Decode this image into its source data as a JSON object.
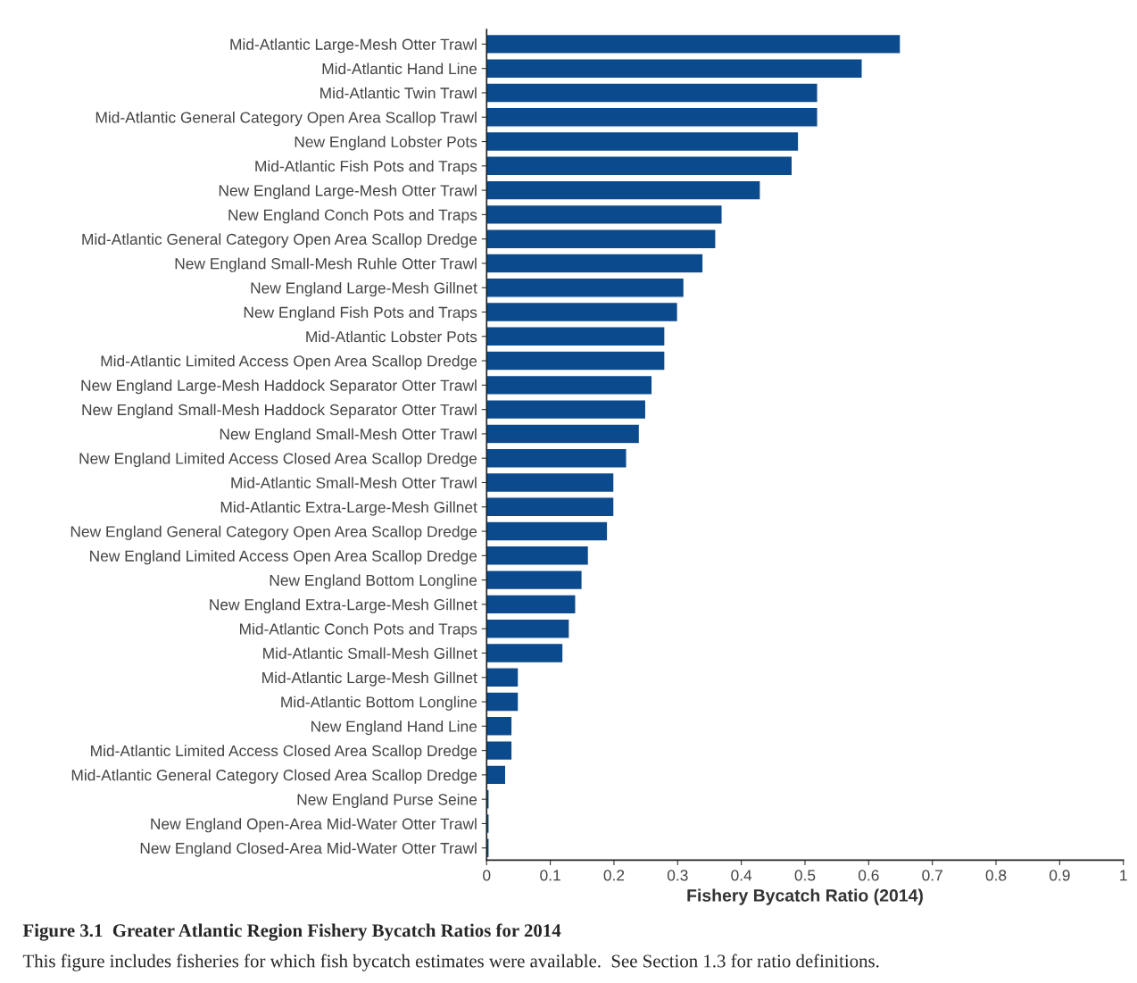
{
  "chart_data": {
    "type": "bar",
    "orientation": "horizontal",
    "title": "Figure 3.1  Greater Atlantic Region Fishery Bycatch Ratios for 2014",
    "xlabel": "Fishery Bycatch Ratio (2014)",
    "annotations": [
      "This figure includes fisheries for which fish bycatch estimates were available.  See Section 1.3 for ratio definitions."
    ],
    "categories": [
      "Mid-Atlantic Large-Mesh Otter Trawl",
      "Mid-Atlantic Hand Line",
      "Mid-Atlantic Twin Trawl",
      "Mid-Atlantic General Category Open Area Scallop Trawl",
      "New England Lobster Pots",
      "Mid-Atlantic Fish Pots and Traps",
      "New England Large-Mesh Otter Trawl",
      "New England Conch Pots and Traps",
      "Mid-Atlantic General Category Open Area Scallop Dredge",
      "New England Small-Mesh Ruhle Otter Trawl",
      "New England Large-Mesh Gillnet",
      "New England Fish Pots and Traps",
      "Mid-Atlantic Lobster Pots",
      "Mid-Atlantic Limited Access Open Area Scallop Dredge",
      "New England Large-Mesh Haddock Separator Otter Trawl",
      "New England Small-Mesh Haddock Separator Otter Trawl",
      "New England Small-Mesh Otter Trawl",
      "New England Limited Access Closed Area Scallop Dredge",
      "Mid-Atlantic Small-Mesh Otter Trawl",
      "Mid-Atlantic Extra-Large-Mesh Gillnet",
      "New England General Category Open Area Scallop Dredge",
      "New England Limited Access Open Area Scallop Dredge",
      "New England Bottom Longline",
      "New England Extra-Large-Mesh Gillnet",
      "Mid-Atlantic Conch Pots and Traps",
      "Mid-Atlantic Small-Mesh Gillnet",
      "Mid-Atlantic Large-Mesh Gillnet",
      "Mid-Atlantic Bottom Longline",
      "New England Hand Line",
      "Mid-Atlantic Limited Access Closed Area Scallop Dredge",
      "Mid-Atlantic General Category Closed Area Scallop Dredge",
      "New England Purse Seine",
      "New England Open-Area Mid-Water Otter Trawl",
      "New England Closed-Area Mid-Water Otter Trawl"
    ],
    "values": [
      0.65,
      0.59,
      0.52,
      0.52,
      0.49,
      0.48,
      0.43,
      0.37,
      0.36,
      0.34,
      0.31,
      0.3,
      0.28,
      0.28,
      0.26,
      0.25,
      0.24,
      0.22,
      0.2,
      0.2,
      0.19,
      0.16,
      0.15,
      0.14,
      0.13,
      0.12,
      0.05,
      0.05,
      0.04,
      0.04,
      0.03,
      0.004,
      0.004,
      0.004
    ],
    "color": "#0b4a8c",
    "xlim": [
      0,
      1
    ],
    "xticks": [
      0,
      0.1,
      0.2,
      0.3,
      0.4,
      0.5,
      0.6,
      0.7,
      0.8,
      0.9,
      1
    ],
    "grid": false
  }
}
